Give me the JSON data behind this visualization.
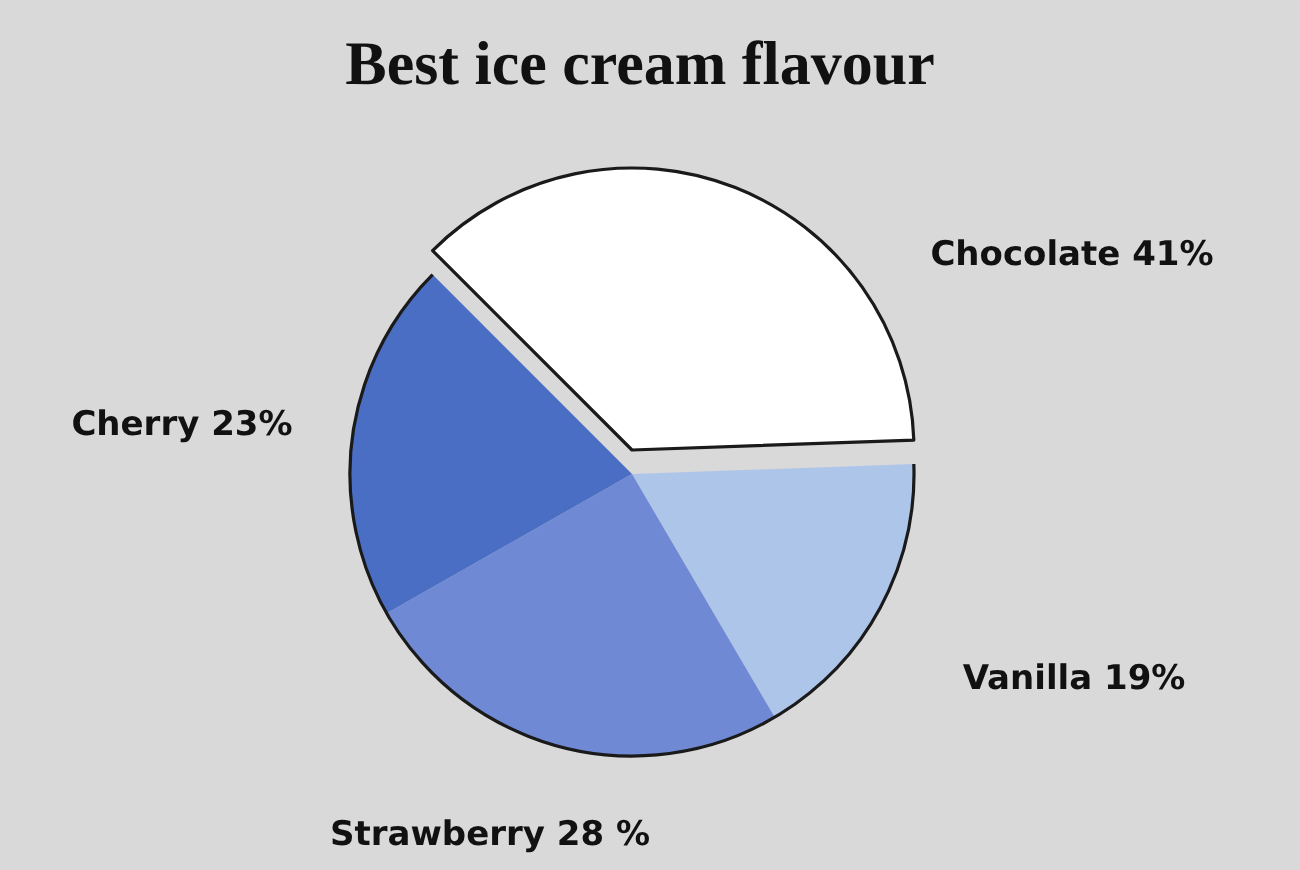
{
  "chart_data": {
    "type": "pie",
    "title": "Best ice cream flavour",
    "categories": [
      "Chocolate",
      "Vanilla",
      "Strawberry",
      "Cherry"
    ],
    "values": [
      41,
      19,
      28,
      23
    ],
    "colors": [
      "#ffffff",
      "#aec5ea",
      "#7089d4",
      "#4a6ec4"
    ],
    "value_labels": [
      "41%",
      "19%",
      "28 %",
      "23%"
    ]
  }
}
